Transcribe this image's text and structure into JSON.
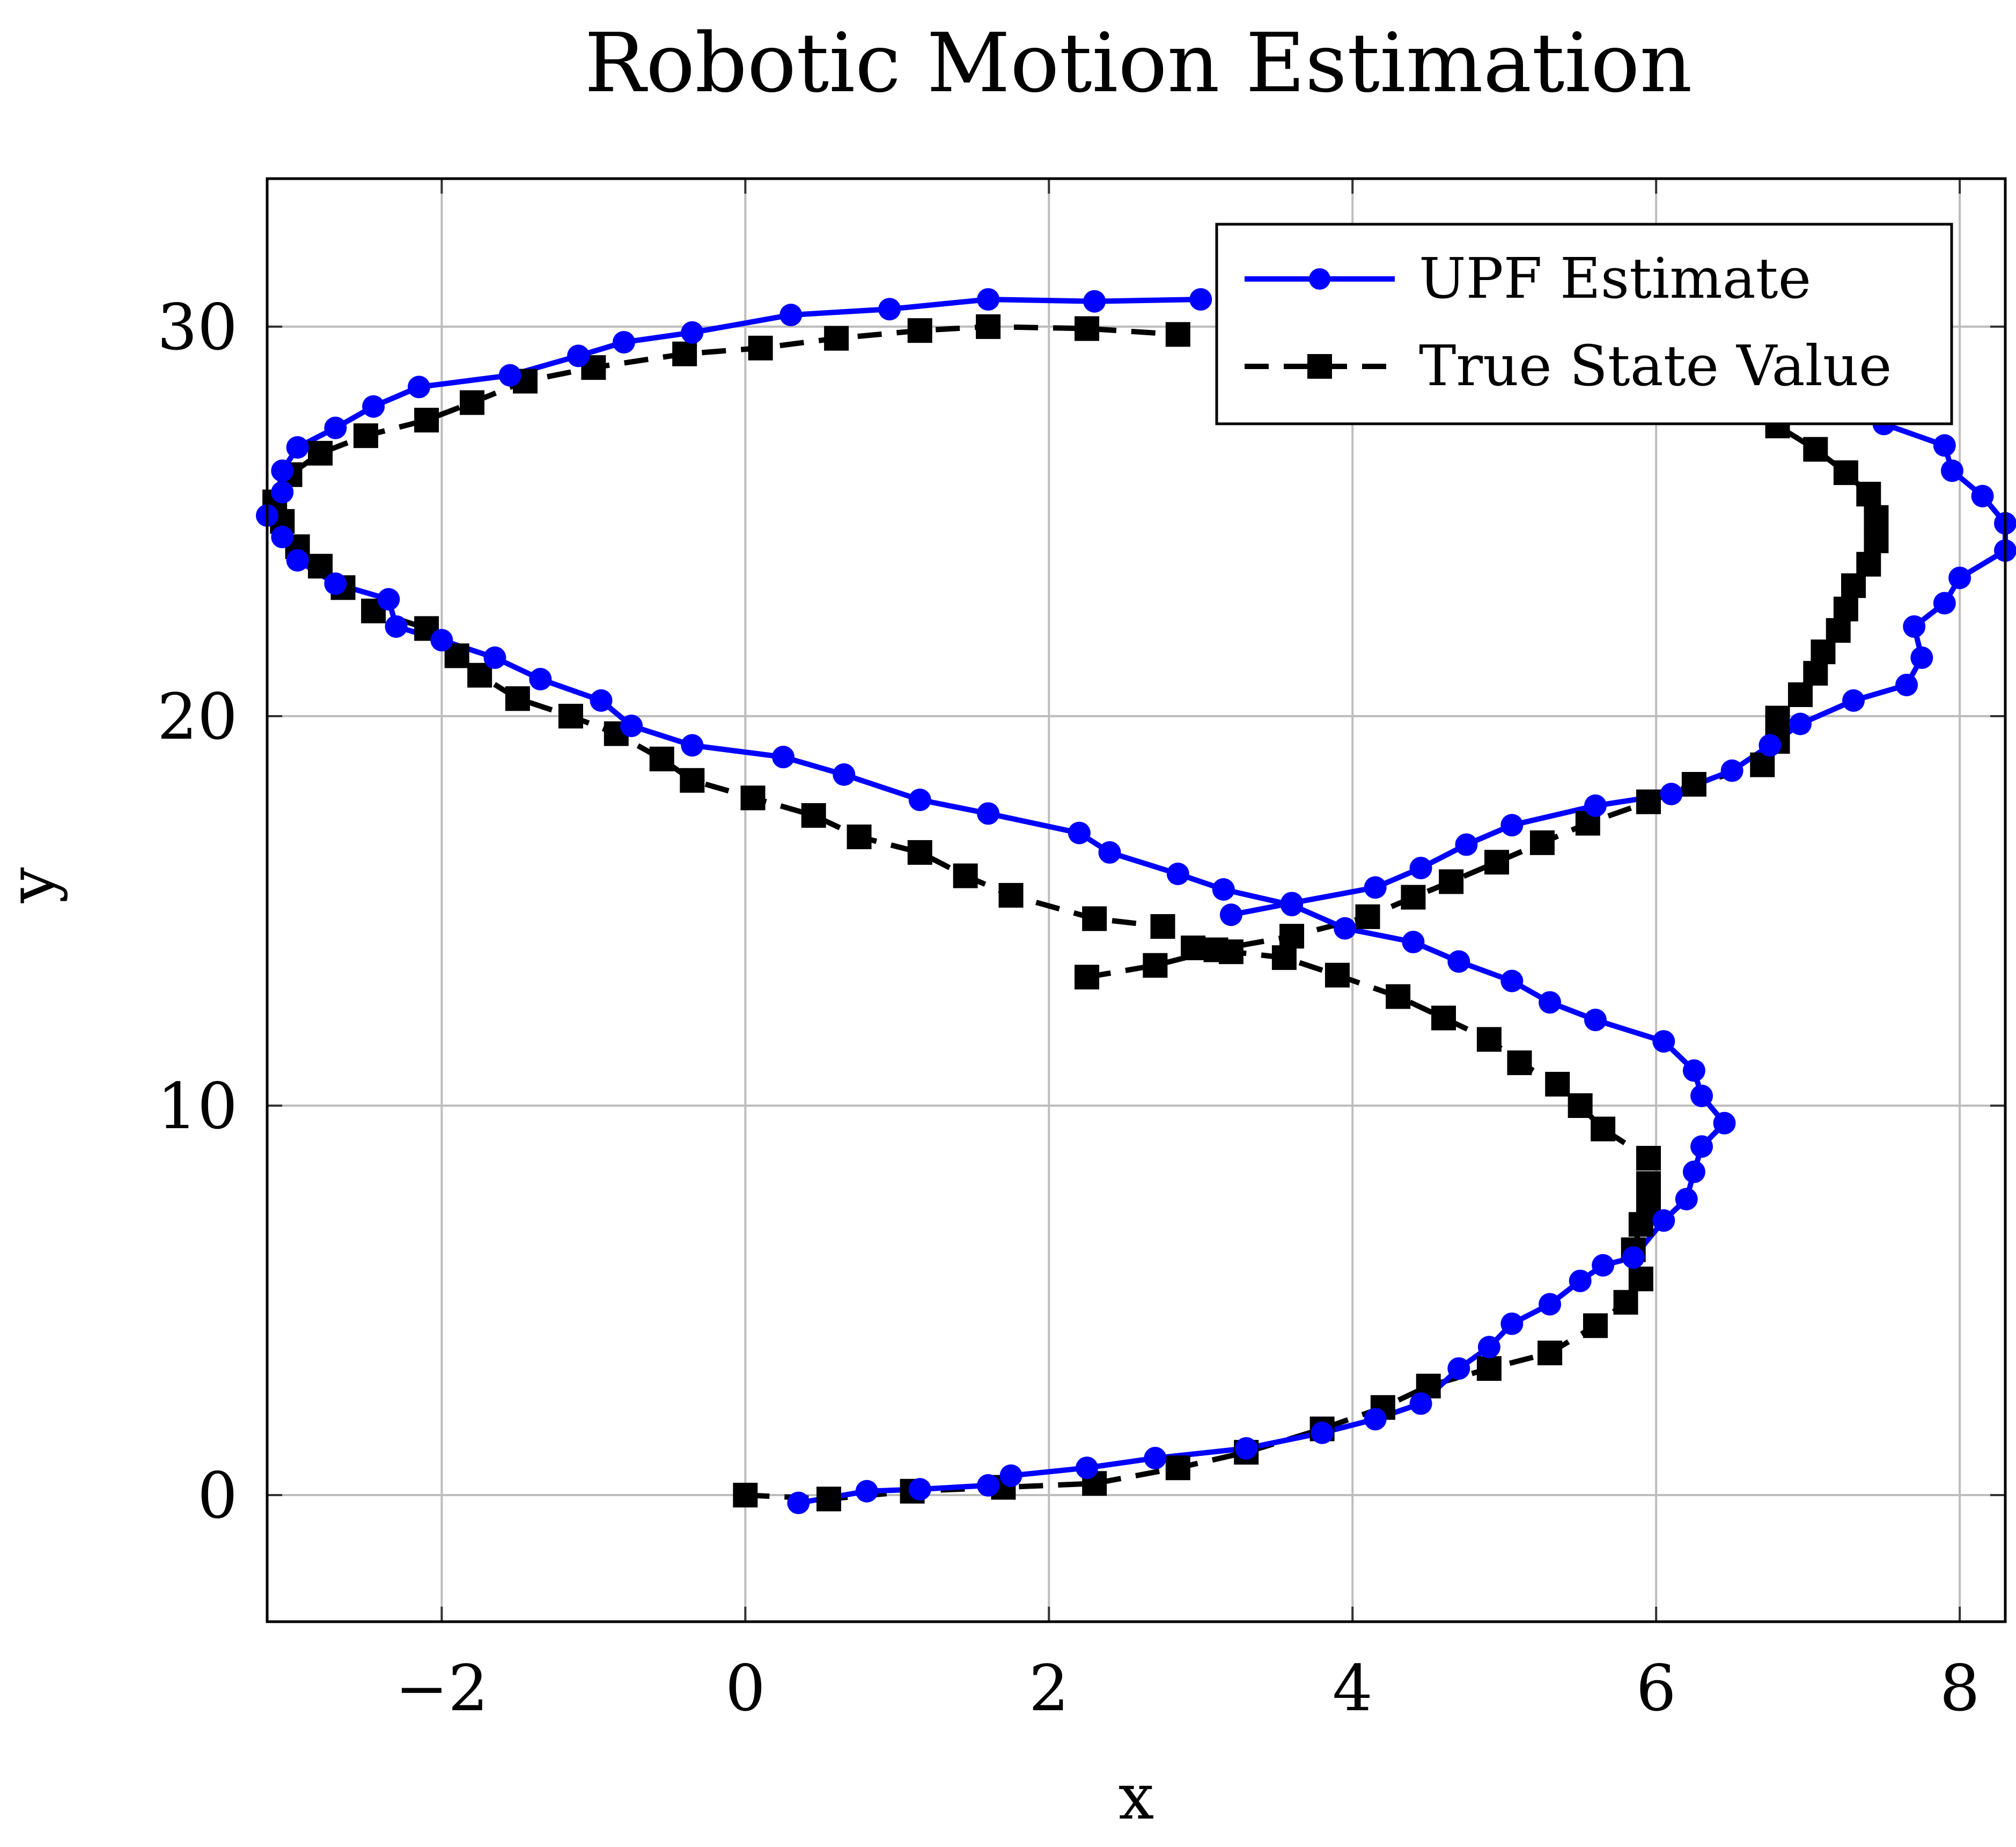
{
  "chart_data": {
    "type": "line",
    "title": "Robotic Motion Estimation",
    "xlabel": "x",
    "ylabel": "y",
    "xlim": [
      -3.15,
      8.3
    ],
    "ylim": [
      -3.25,
      33.8
    ],
    "xticks": [
      -2,
      0,
      2,
      4,
      6,
      8
    ],
    "yticks": [
      0,
      10,
      20,
      30
    ],
    "xtick_labels": [
      "−2",
      "0",
      "2",
      "4",
      "6",
      "8"
    ],
    "ytick_labels": [
      "0",
      "10",
      "20",
      "30"
    ],
    "grid": true,
    "legend_position": "top-right",
    "series": [
      {
        "name": "UPF Estimate",
        "color": "#0000ff",
        "line": "solid",
        "marker": "circle",
        "points": [
          [
            0.35,
            -0.2
          ],
          [
            0.8,
            0.1
          ],
          [
            1.15,
            0.15
          ],
          [
            1.6,
            0.25
          ],
          [
            1.75,
            0.5
          ],
          [
            2.25,
            0.7
          ],
          [
            2.7,
            0.95
          ],
          [
            3.3,
            1.2
          ],
          [
            3.8,
            1.6
          ],
          [
            4.15,
            1.95
          ],
          [
            4.45,
            2.35
          ],
          [
            4.7,
            3.25
          ],
          [
            4.9,
            3.8
          ],
          [
            5.05,
            4.4
          ],
          [
            5.3,
            4.9
          ],
          [
            5.5,
            5.5
          ],
          [
            5.65,
            5.9
          ],
          [
            5.85,
            6.1
          ],
          [
            6.05,
            7.05
          ],
          [
            6.2,
            7.6
          ],
          [
            6.25,
            8.3
          ],
          [
            6.3,
            8.95
          ],
          [
            6.45,
            9.55
          ],
          [
            6.3,
            10.25
          ],
          [
            6.25,
            10.9
          ],
          [
            6.05,
            11.65
          ],
          [
            5.6,
            12.2
          ],
          [
            5.3,
            12.65
          ],
          [
            5.05,
            13.2
          ],
          [
            4.7,
            13.7
          ],
          [
            4.4,
            14.2
          ],
          [
            3.95,
            14.55
          ],
          [
            3.6,
            15.15
          ],
          [
            3.15,
            15.55
          ],
          [
            2.85,
            15.95
          ],
          [
            2.4,
            16.5
          ],
          [
            2.2,
            17.0
          ],
          [
            1.6,
            17.5
          ],
          [
            1.15,
            17.85
          ],
          [
            0.65,
            18.5
          ],
          [
            0.25,
            18.95
          ],
          [
            -0.35,
            19.25
          ],
          [
            -0.75,
            19.75
          ],
          [
            -0.95,
            20.4
          ],
          [
            -1.35,
            20.95
          ],
          [
            -1.65,
            21.5
          ],
          [
            -2.0,
            21.95
          ],
          [
            -2.3,
            22.3
          ],
          [
            -2.35,
            23.0
          ],
          [
            -2.7,
            23.4
          ],
          [
            -2.95,
            24.0
          ],
          [
            -3.05,
            24.6
          ],
          [
            -3.15,
            25.15
          ],
          [
            -3.05,
            25.75
          ],
          [
            -3.05,
            26.3
          ],
          [
            -2.95,
            26.9
          ],
          [
            -2.7,
            27.4
          ],
          [
            -2.45,
            27.95
          ],
          [
            -2.15,
            28.45
          ],
          [
            -1.55,
            28.75
          ],
          [
            -1.1,
            29.25
          ],
          [
            -0.8,
            29.6
          ],
          [
            -0.35,
            29.85
          ],
          [
            0.3,
            30.3
          ],
          [
            0.95,
            30.45
          ],
          [
            1.6,
            30.7
          ],
          [
            2.3,
            30.65
          ],
          [
            3.0,
            30.7
          ]
        ]
      },
      {
        "name": "True State Value",
        "color": "#000000",
        "line": "dashed",
        "marker": "square",
        "points": [
          [
            0.0,
            0.0
          ],
          [
            0.55,
            -0.1
          ],
          [
            1.1,
            0.1
          ],
          [
            1.7,
            0.2
          ],
          [
            2.3,
            0.3
          ],
          [
            2.85,
            0.7
          ],
          [
            3.3,
            1.1
          ],
          [
            3.8,
            1.7
          ],
          [
            4.2,
            2.25
          ],
          [
            4.5,
            2.8
          ],
          [
            4.9,
            3.25
          ],
          [
            5.3,
            3.65
          ],
          [
            5.6,
            4.35
          ],
          [
            5.8,
            4.95
          ],
          [
            5.9,
            5.55
          ],
          [
            5.85,
            6.3
          ],
          [
            5.9,
            6.95
          ],
          [
            5.95,
            7.45
          ],
          [
            5.95,
            8.0
          ],
          [
            5.95,
            8.65
          ],
          [
            5.65,
            9.4
          ],
          [
            5.5,
            10.0
          ],
          [
            5.35,
            10.55
          ],
          [
            5.1,
            11.1
          ],
          [
            4.9,
            11.7
          ],
          [
            4.6,
            12.25
          ],
          [
            4.3,
            12.8
          ],
          [
            3.9,
            13.35
          ],
          [
            3.55,
            13.8
          ],
          [
            3.2,
            13.95
          ],
          [
            2.95,
            14.05
          ],
          [
            2.75,
            14.6
          ],
          [
            2.3,
            14.8
          ],
          [
            1.75,
            15.4
          ],
          [
            1.45,
            15.9
          ],
          [
            1.15,
            16.5
          ],
          [
            0.75,
            16.9
          ],
          [
            0.45,
            17.45
          ],
          [
            0.05,
            17.9
          ],
          [
            -0.35,
            18.35
          ],
          [
            -0.55,
            18.9
          ],
          [
            -0.85,
            19.55
          ],
          [
            -1.15,
            20.0
          ],
          [
            -1.5,
            20.45
          ],
          [
            -1.75,
            21.05
          ],
          [
            -1.9,
            21.55
          ],
          [
            -2.1,
            22.25
          ],
          [
            -2.45,
            22.7
          ],
          [
            -2.65,
            23.3
          ],
          [
            -2.8,
            23.85
          ],
          [
            -2.95,
            24.35
          ],
          [
            -3.05,
            25.0
          ],
          [
            -3.1,
            25.5
          ],
          [
            -3.0,
            26.2
          ],
          [
            -2.8,
            26.75
          ],
          [
            -2.5,
            27.2
          ],
          [
            -2.1,
            27.6
          ],
          [
            -1.8,
            28.05
          ],
          [
            -1.45,
            28.6
          ],
          [
            -1.0,
            28.95
          ],
          [
            -0.4,
            29.3
          ],
          [
            0.1,
            29.45
          ],
          [
            0.6,
            29.7
          ],
          [
            1.15,
            29.9
          ],
          [
            1.6,
            30.0
          ],
          [
            2.25,
            29.95
          ],
          [
            2.85,
            29.8
          ]
        ],
        "points_segment_2": [
          [
            2.25,
            13.3
          ],
          [
            2.7,
            13.6
          ],
          [
            3.1,
            14.0
          ],
          [
            3.6,
            14.35
          ],
          [
            4.1,
            14.85
          ],
          [
            4.4,
            15.35
          ],
          [
            4.65,
            15.75
          ],
          [
            4.95,
            16.25
          ],
          [
            5.25,
            16.75
          ],
          [
            5.55,
            17.25
          ],
          [
            5.95,
            17.8
          ],
          [
            6.25,
            18.25
          ],
          [
            6.7,
            18.75
          ],
          [
            6.8,
            19.35
          ],
          [
            6.8,
            19.95
          ],
          [
            6.95,
            20.55
          ],
          [
            7.05,
            21.1
          ],
          [
            7.1,
            21.65
          ],
          [
            7.2,
            22.2
          ],
          [
            7.25,
            22.75
          ],
          [
            7.3,
            23.35
          ],
          [
            7.4,
            23.9
          ],
          [
            7.45,
            24.5
          ],
          [
            7.45,
            25.1
          ],
          [
            7.4,
            25.7
          ],
          [
            7.25,
            26.25
          ],
          [
            7.05,
            26.85
          ],
          [
            6.8,
            27.45
          ]
        ]
      }
    ],
    "extra_upf_points": [
      [
        3.2,
        14.9
      ],
      [
        3.6,
        15.2
      ],
      [
        4.15,
        15.6
      ],
      [
        4.45,
        16.1
      ],
      [
        4.75,
        16.7
      ],
      [
        5.05,
        17.2
      ],
      [
        5.6,
        17.7
      ],
      [
        6.1,
        18.0
      ],
      [
        6.5,
        18.6
      ],
      [
        6.75,
        19.25
      ],
      [
        6.95,
        19.8
      ],
      [
        7.3,
        20.4
      ],
      [
        7.65,
        20.8
      ],
      [
        7.75,
        21.5
      ],
      [
        7.7,
        22.3
      ],
      [
        7.9,
        22.9
      ],
      [
        8.0,
        23.55
      ],
      [
        8.3,
        24.25
      ],
      [
        8.3,
        24.95
      ],
      [
        8.15,
        25.65
      ],
      [
        7.95,
        26.3
      ],
      [
        7.9,
        26.95
      ],
      [
        7.5,
        27.5
      ]
    ]
  }
}
